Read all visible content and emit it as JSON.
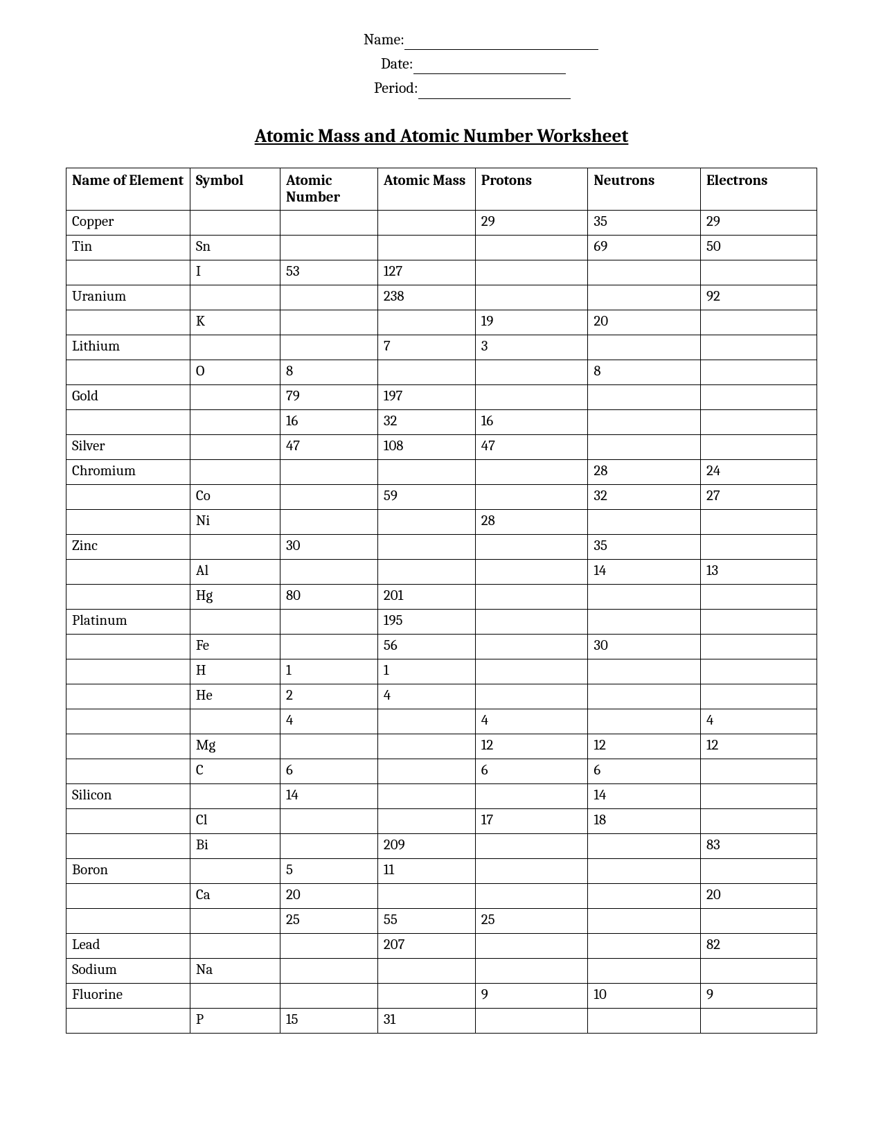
{
  "header": {
    "name_label": "Name:",
    "date_label": "Date:",
    "period_label": "Period:"
  },
  "title": "Atomic Mass and Atomic Number Worksheet",
  "table": {
    "columns": [
      "Name of Element",
      "Symbol",
      "Atomic Number",
      "Atomic Mass",
      "Protons",
      "Neutrons",
      "Electrons"
    ],
    "rows": [
      {
        "name": "Copper",
        "symbol": "",
        "anum": "",
        "amass": "",
        "prot": "29",
        "neut": "35",
        "elec": "29"
      },
      {
        "name": "Tin",
        "symbol": "Sn",
        "anum": "",
        "amass": "",
        "prot": "",
        "neut": "69",
        "elec": "50"
      },
      {
        "name": "",
        "symbol": "I",
        "anum": "53",
        "amass": "127",
        "prot": "",
        "neut": "",
        "elec": ""
      },
      {
        "name": "Uranium",
        "symbol": "",
        "anum": "",
        "amass": "238",
        "prot": "",
        "neut": "",
        "elec": "92"
      },
      {
        "name": "",
        "symbol": "K",
        "anum": "",
        "amass": "",
        "prot": "19",
        "neut": "20",
        "elec": ""
      },
      {
        "name": "Lithium",
        "symbol": "",
        "anum": "",
        "amass": "7",
        "prot": "3",
        "neut": "",
        "elec": ""
      },
      {
        "name": "",
        "symbol": "O",
        "anum": "8",
        "amass": "",
        "prot": "",
        "neut": "8",
        "elec": ""
      },
      {
        "name": "Gold",
        "symbol": "",
        "anum": "79",
        "amass": "197",
        "prot": "",
        "neut": "",
        "elec": ""
      },
      {
        "name": "",
        "symbol": "",
        "anum": "16",
        "amass": "32",
        "prot": "16",
        "neut": "",
        "elec": ""
      },
      {
        "name": "Silver",
        "symbol": "",
        "anum": "47",
        "amass": "108",
        "prot": "47",
        "neut": "",
        "elec": ""
      },
      {
        "name": "Chromium",
        "symbol": "",
        "anum": "",
        "amass": "",
        "prot": "",
        "neut": "28",
        "elec": "24"
      },
      {
        "name": "",
        "symbol": "Co",
        "anum": "",
        "amass": "59",
        "prot": "",
        "neut": "32",
        "elec": "27"
      },
      {
        "name": "",
        "symbol": "Ni",
        "anum": "",
        "amass": "",
        "prot": "28",
        "neut": "",
        "elec": ""
      },
      {
        "name": "Zinc",
        "symbol": "",
        "anum": "30",
        "amass": "",
        "prot": "",
        "neut": "35",
        "elec": ""
      },
      {
        "name": "",
        "symbol": "Al",
        "anum": "",
        "amass": "",
        "prot": "",
        "neut": "14",
        "elec": "13"
      },
      {
        "name": "",
        "symbol": "Hg",
        "anum": "80",
        "amass": "201",
        "prot": "",
        "neut": "",
        "elec": ""
      },
      {
        "name": "Platinum",
        "symbol": "",
        "anum": "",
        "amass": "195",
        "prot": "",
        "neut": "",
        "elec": ""
      },
      {
        "name": "",
        "symbol": "Fe",
        "anum": "",
        "amass": "56",
        "prot": "",
        "neut": "30",
        "elec": ""
      },
      {
        "name": "",
        "symbol": "H",
        "anum": "1",
        "amass": "1",
        "prot": "",
        "neut": "",
        "elec": ""
      },
      {
        "name": "",
        "symbol": "He",
        "anum": "2",
        "amass": "4",
        "prot": "",
        "neut": "",
        "elec": ""
      },
      {
        "name": "",
        "symbol": "",
        "anum": "4",
        "amass": "",
        "prot": "4",
        "neut": "",
        "elec": "4"
      },
      {
        "name": "",
        "symbol": "Mg",
        "anum": "",
        "amass": "",
        "prot": "12",
        "neut": "12",
        "elec": "12"
      },
      {
        "name": "",
        "symbol": "C",
        "anum": "6",
        "amass": "",
        "prot": "6",
        "neut": "6",
        "elec": ""
      },
      {
        "name": "Silicon",
        "symbol": "",
        "anum": "14",
        "amass": "",
        "prot": "",
        "neut": "14",
        "elec": ""
      },
      {
        "name": "",
        "symbol": "Cl",
        "anum": "",
        "amass": "",
        "prot": "17",
        "neut": "18",
        "elec": ""
      },
      {
        "name": "",
        "symbol": "Bi",
        "anum": "",
        "amass": "209",
        "prot": "",
        "neut": "",
        "elec": "83"
      },
      {
        "name": "Boron",
        "symbol": "",
        "anum": "5",
        "amass": "11",
        "prot": "",
        "neut": "",
        "elec": ""
      },
      {
        "name": "",
        "symbol": "Ca",
        "anum": "20",
        "amass": "",
        "prot": "",
        "neut": "",
        "elec": "20"
      },
      {
        "name": "",
        "symbol": "",
        "anum": "25",
        "amass": "55",
        "prot": "25",
        "neut": "",
        "elec": ""
      },
      {
        "name": "Lead",
        "symbol": "",
        "anum": "",
        "amass": "207",
        "prot": "",
        "neut": "",
        "elec": "82"
      },
      {
        "name": "Sodium",
        "symbol": "Na",
        "anum": "",
        "amass": "",
        "prot": "",
        "neut": "",
        "elec": ""
      },
      {
        "name": "Fluorine",
        "symbol": "",
        "anum": "",
        "amass": "",
        "prot": "9",
        "neut": "10",
        "elec": "9"
      },
      {
        "name": "",
        "symbol": "P",
        "anum": "15",
        "amass": "31",
        "prot": "",
        "neut": "",
        "elec": ""
      }
    ],
    "styling": {
      "border_color": "#000000",
      "font_size_pt": 16,
      "header_font_weight": "bold",
      "cell_text_align_name": "left",
      "cell_text_align_other": "center",
      "background_color": "#ffffff"
    }
  }
}
